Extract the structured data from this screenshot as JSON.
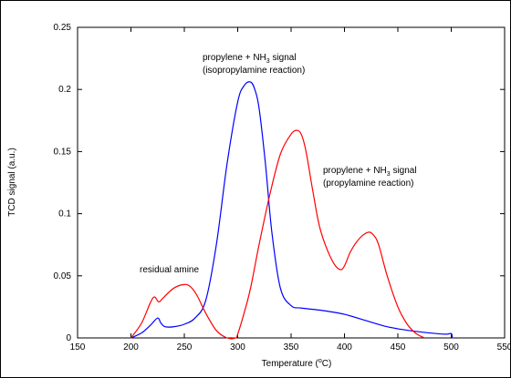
{
  "chart_data": {
    "type": "line",
    "xlabel_main": "Temperature (",
    "xlabel_sup": "o",
    "xlabel_end": "C)",
    "ylabel": "TCD signal (a.u.)",
    "xlim": [
      150,
      550
    ],
    "ylim": [
      0,
      0.25
    ],
    "x_ticks": [
      150,
      200,
      250,
      300,
      350,
      400,
      450,
      500,
      550
    ],
    "y_ticks": [
      0,
      0.05,
      0.1,
      0.15,
      0.2,
      0.25
    ],
    "y_tick_labels": [
      "0",
      "0.05",
      "0.1",
      "0.15",
      "0.2",
      "0.25"
    ],
    "grid": false,
    "legend": "none",
    "series": [
      {
        "color": "#0000ff",
        "x": [
          200,
          210,
          218,
          225,
          228,
          232,
          240,
          250,
          260,
          270,
          280,
          290,
          300,
          306,
          312,
          316,
          320,
          326,
          332,
          340,
          350,
          360,
          380,
          400,
          420,
          440,
          460,
          480,
          495,
          500,
          501
        ],
        "y": [
          0,
          0.004,
          0.01,
          0.016,
          0.012,
          0.009,
          0.009,
          0.011,
          0.016,
          0.03,
          0.075,
          0.14,
          0.19,
          0.203,
          0.206,
          0.2,
          0.185,
          0.14,
          0.085,
          0.04,
          0.026,
          0.024,
          0.022,
          0.019,
          0.014,
          0.009,
          0.006,
          0.004,
          0.003,
          0.0035,
          0.0005
        ]
      },
      {
        "color": "#ff0000",
        "x": [
          200,
          210,
          218,
          222,
          226,
          230,
          240,
          250,
          256,
          262,
          270,
          280,
          290,
          298,
          300,
          306,
          312,
          320,
          330,
          340,
          350,
          356,
          360,
          364,
          370,
          376,
          382,
          390,
          396,
          400,
          406,
          414,
          422,
          427,
          432,
          440,
          450,
          458,
          465,
          470,
          475
        ],
        "y": [
          0,
          0.012,
          0.028,
          0.033,
          0.029,
          0.032,
          0.04,
          0.043,
          0.041,
          0.034,
          0.02,
          0.006,
          0,
          0,
          0.003,
          0.02,
          0.04,
          0.075,
          0.115,
          0.148,
          0.164,
          0.167,
          0.163,
          0.15,
          0.12,
          0.092,
          0.075,
          0.06,
          0.055,
          0.058,
          0.07,
          0.08,
          0.085,
          0.083,
          0.075,
          0.05,
          0.025,
          0.012,
          0.005,
          0.002,
          0
        ]
      }
    ],
    "annotations": [
      {
        "id": "ann-blue",
        "lines": [
          {
            "pre": "propylene + NH",
            "sub": "3",
            "post": " signal"
          },
          {
            "pre": "(isopropylamine reaction)",
            "sub": "",
            "post": ""
          }
        ]
      },
      {
        "id": "ann-red",
        "lines": [
          {
            "pre": "propylene + NH",
            "sub": "3",
            "post": " signal"
          },
          {
            "pre": "(propylamine reaction)",
            "sub": "",
            "post": ""
          }
        ]
      },
      {
        "id": "ann-residual",
        "lines": [
          {
            "pre": "residual amine",
            "sub": "",
            "post": ""
          }
        ]
      }
    ]
  }
}
